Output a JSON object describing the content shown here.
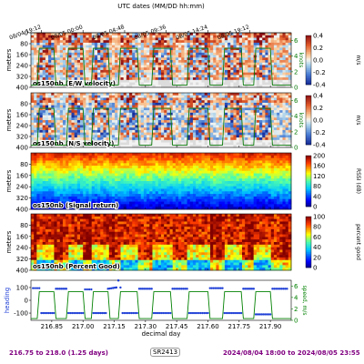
{
  "top_axis": {
    "label": "UTC dates (MM/DD hh:mm)",
    "ticks": [
      "08/04 19:12",
      "08/05 00:00",
      "08/05 04:48",
      "08/05 09:36",
      "08/05 14:24",
      "08/05 19:12"
    ],
    "tick_days": [
      216.8,
      217.0,
      217.2,
      217.4,
      217.6,
      217.8
    ]
  },
  "x_axis": {
    "label": "decimal day",
    "ticks": [
      "216.85",
      "217.00",
      "217.15",
      "217.30",
      "217.45",
      "217.60",
      "217.75",
      "217.90"
    ],
    "tick_values": [
      216.85,
      217.0,
      217.15,
      217.3,
      217.45,
      217.6,
      217.75,
      217.9
    ],
    "range": [
      216.75,
      218.0
    ]
  },
  "panels": [
    {
      "title": "os150nb (E/W velocity)",
      "ylabel": "meters",
      "yticks": [
        "0",
        "80",
        "160",
        "240",
        "320",
        "400"
      ],
      "cbar_ticks": [
        "0.4",
        "0.2",
        "0.0",
        "-0.2",
        "-0.4"
      ],
      "cbar_label": "m/s",
      "right_label": "knots",
      "right_ticks": [
        "6",
        "4",
        "2",
        "0"
      ]
    },
    {
      "title": "os150nb (N/S velocity)",
      "ylabel": "meters",
      "yticks": [
        "80",
        "160",
        "240",
        "320",
        "400"
      ],
      "cbar_ticks": [
        "0.4",
        "0.2",
        "0.0",
        "-0.2",
        "-0.4"
      ],
      "cbar_label": "m/s",
      "right_label": "knots",
      "right_ticks": [
        "6",
        "4",
        "2",
        "0"
      ]
    },
    {
      "title": "os150nb (Signal return)",
      "ylabel": "meters",
      "yticks": [
        "80",
        "160",
        "240",
        "320",
        "400"
      ],
      "cbar_ticks": [
        "200",
        "160",
        "120",
        "80",
        "40",
        "0"
      ],
      "cbar_label": "RSSI (dB)"
    },
    {
      "title": "os150nb (Percent Good)",
      "ylabel": "meters",
      "yticks": [
        "80",
        "160",
        "240",
        "320",
        "400"
      ],
      "cbar_ticks": [
        "100",
        "80",
        "60",
        "40",
        "20",
        "0"
      ],
      "cbar_label": "percent good"
    }
  ],
  "bottom_panel": {
    "ylabel_left": "heading",
    "yticks_left": [
      "100",
      "0",
      "-100"
    ],
    "ylabel_right": "speed, m/s",
    "yticks_right": [
      "6",
      "4",
      "2",
      "0"
    ],
    "heading_color": "#1f3fd6",
    "speed_color": "#008000"
  },
  "footer": {
    "left": "216.75 to 218.0 (1.25 days)",
    "center": "SR2413",
    "right": "2024/08/04 18:00 to 2024/08/05 23:55"
  },
  "chart_data": {
    "type": "heatmap",
    "x_range": [
      216.75,
      218.0
    ],
    "depth_range": [
      0,
      400
    ],
    "speed_knots": {
      "x": [
        216.75,
        216.78,
        216.79,
        216.86,
        216.87,
        216.92,
        216.93,
        217.0,
        217.01,
        217.04,
        217.05,
        217.12,
        217.13,
        217.17,
        217.18,
        217.26,
        217.27,
        217.33,
        217.34,
        217.42,
        217.43,
        217.5,
        217.51,
        217.6,
        217.61,
        217.67,
        217.68,
        217.76,
        217.77,
        217.82,
        217.83,
        217.9,
        217.91,
        217.98,
        218.0
      ],
      "y": [
        0.3,
        0.3,
        5.0,
        5.0,
        0.3,
        0.3,
        5.0,
        5.0,
        0.3,
        0.3,
        5.0,
        5.0,
        0.3,
        0.3,
        5.0,
        5.0,
        0.3,
        0.3,
        5.0,
        5.0,
        0.3,
        0.3,
        5.0,
        5.0,
        0.3,
        0.3,
        5.0,
        5.0,
        0.3,
        0.3,
        5.0,
        5.0,
        0.3,
        0.3,
        0.3
      ]
    },
    "heading_deg": {
      "x": [
        216.76,
        216.79,
        216.8,
        216.86,
        216.87,
        216.92,
        216.93,
        217.0,
        217.01,
        217.04,
        217.05,
        217.11,
        217.12,
        217.16,
        217.17,
        217.18,
        217.19,
        217.26,
        217.27,
        217.33,
        217.34,
        217.42,
        217.43,
        217.5,
        217.51,
        217.6,
        217.61,
        217.67,
        217.68,
        217.76,
        217.77,
        217.82,
        217.83,
        217.9,
        217.91,
        217.98
      ],
      "y": [
        95,
        95,
        -100,
        -100,
        90,
        90,
        -100,
        -100,
        85,
        85,
        -100,
        -100,
        90,
        100,
        155,
        100,
        -100,
        -100,
        90,
        90,
        -100,
        -100,
        90,
        90,
        -100,
        -100,
        95,
        95,
        -100,
        -100,
        90,
        90,
        -110,
        -110,
        90,
        90
      ]
    },
    "colorbars": {
      "velocity": {
        "min": -0.4,
        "max": 0.4,
        "unit": "m/s"
      },
      "signal_return": {
        "min": 0,
        "max": 200,
        "unit": "dB"
      },
      "percent_good": {
        "min": 0,
        "max": 100,
        "unit": "%"
      }
    }
  }
}
